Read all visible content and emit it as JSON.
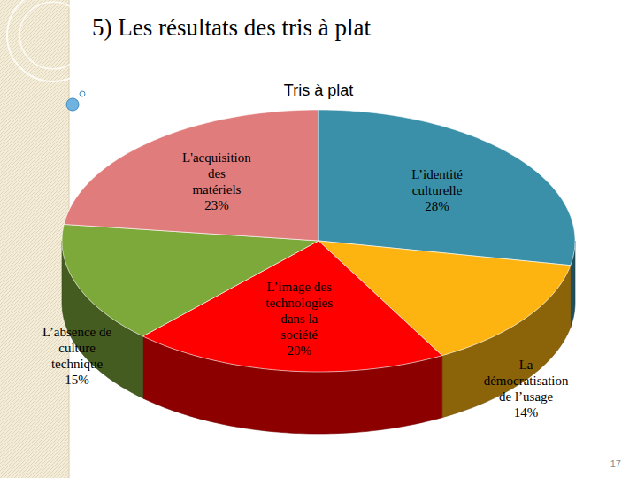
{
  "page": {
    "heading": "5) Les résultats des tris à plat",
    "number": 17
  },
  "chart_data": {
    "type": "pie",
    "title": "Tris à plat",
    "categories": [
      "L’identité culturelle",
      "La démocratisation de l’usage",
      "L’image des technologies dans la société",
      "L’absence de culture technique",
      "L'acquisition des matériels"
    ],
    "values": [
      28,
      14,
      20,
      15,
      23
    ],
    "value_labels": [
      "28%",
      "14%",
      "20%",
      "15%",
      "23%"
    ],
    "colors": [
      "#3a90a8",
      "#fdb410",
      "#ff0000",
      "#7da83a",
      "#e07c7c"
    ],
    "data_labels": true
  }
}
